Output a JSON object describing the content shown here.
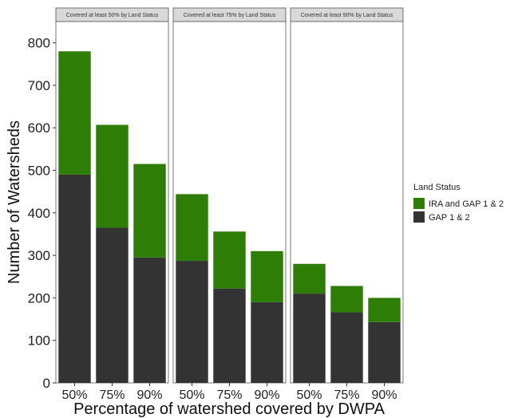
{
  "chart_data": {
    "type": "bar",
    "stacked": true,
    "facets": [
      "Covered at least 50% by Land Status",
      "Covered at least 75% by Land Status",
      "Covered at least 90% by Land Status"
    ],
    "categories": [
      "50%",
      "75%",
      "90%"
    ],
    "series": [
      {
        "name": "GAP 1 & 2",
        "color": "#333333",
        "values": [
          [
            490,
            365,
            295
          ],
          [
            287,
            222,
            190
          ],
          [
            210,
            166,
            143
          ]
        ]
      },
      {
        "name": "IRA and GAP 1 & 2",
        "color": "#2e7d07",
        "values": [
          [
            290,
            242,
            220
          ],
          [
            157,
            134,
            120
          ],
          [
            70,
            62,
            57
          ]
        ]
      }
    ],
    "totals": [
      [
        780,
        607,
        515
      ],
      [
        444,
        356,
        310
      ],
      [
        280,
        228,
        200
      ]
    ],
    "xlabel": "Percentage of watershed covered by DWPA",
    "ylabel": "Number of Watersheds",
    "ylim": [
      0,
      850
    ],
    "yticks": [
      0,
      100,
      200,
      300,
      400,
      500,
      600,
      700,
      800
    ],
    "legend": {
      "title": "Land Status",
      "placement": "right",
      "entries": [
        "IRA and GAP 1 & 2",
        "GAP 1 & 2"
      ]
    },
    "grid": false
  }
}
